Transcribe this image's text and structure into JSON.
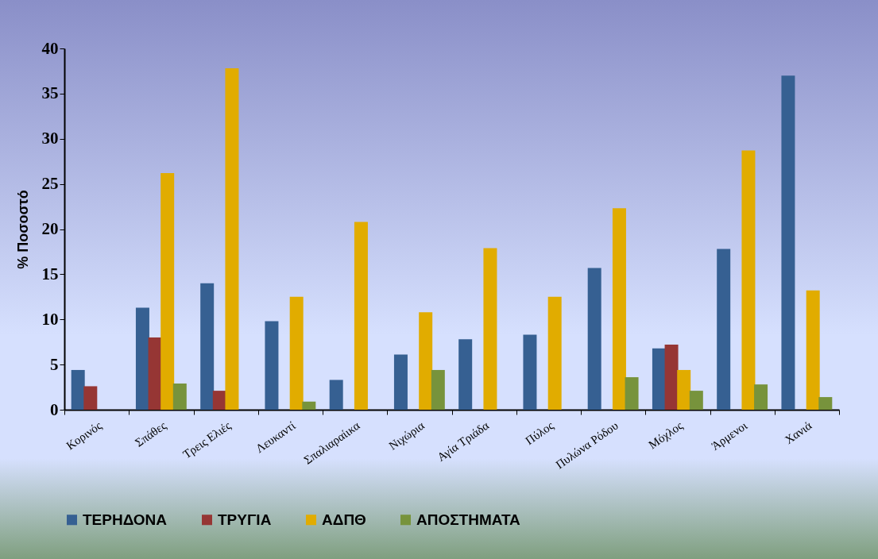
{
  "chart_data": {
    "type": "bar",
    "ylabel": "% Ποσοστό",
    "categories": [
      "Κορινός",
      "Σπάθες",
      "Τρεις Ελιές",
      "Λευκαντί",
      "Σπαλιαραίικα",
      "Νιχώρια",
      "Αγία Τριάδα",
      "Πύλος",
      "Πυλώνα Ρόδου",
      "Μόχλος",
      "Άρμενοι",
      "Χανιά"
    ],
    "series": [
      {
        "name": "ΤΕΡΗΔΟΝΑ",
        "color": "#366092",
        "values": [
          4.4,
          11.3,
          14.0,
          9.8,
          3.3,
          6.1,
          7.8,
          8.3,
          15.7,
          6.8,
          17.8,
          37.0
        ]
      },
      {
        "name": "ΤΡΥΓΙΑ",
        "color": "#963634",
        "values": [
          2.6,
          8.0,
          2.1,
          null,
          null,
          null,
          null,
          null,
          null,
          7.2,
          null,
          null
        ]
      },
      {
        "name": "ΑΔΠΘ",
        "color": "#e1ac00",
        "values": [
          null,
          26.2,
          37.8,
          12.5,
          20.8,
          10.8,
          17.9,
          12.5,
          22.3,
          4.4,
          28.7,
          13.2
        ]
      },
      {
        "name": "ΑΠΟΣΤΗΜΑΤΑ",
        "color": "#77933c",
        "values": [
          null,
          2.9,
          null,
          0.9,
          null,
          4.4,
          null,
          null,
          3.6,
          2.1,
          2.8,
          1.4
        ]
      }
    ],
    "ylim": [
      0,
      40
    ],
    "yticks": [
      0,
      5,
      10,
      15,
      20,
      25,
      30,
      35,
      40
    ],
    "grid": false,
    "legend": "bottom"
  }
}
